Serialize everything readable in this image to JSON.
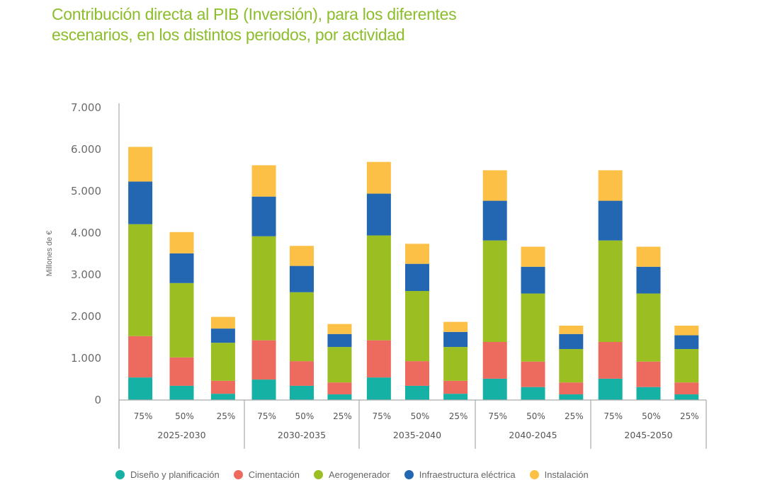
{
  "title": {
    "line1": "Contribución directa al PIB (Inversión), para los diferentes",
    "line2": "escenarios, en los distintos periodos, por actividad"
  },
  "chart_data": {
    "type": "bar",
    "stacked": true,
    "title": "Contribución directa al PIB (Inversión), para los diferentes escenarios, en los distintos periodos, por actividad",
    "xlabel": "",
    "ylabel": "Millones de €",
    "ylim": [
      0,
      7000
    ],
    "yticks": [
      0,
      1000,
      2000,
      3000,
      4000,
      5000,
      6000,
      7000
    ],
    "ytick_labels": [
      "0",
      "1.000",
      "2.000",
      "3.000",
      "4.000",
      "5.000",
      "6.000",
      "7.000"
    ],
    "grid": false,
    "legend_position": "bottom",
    "groups": [
      "2025-2030",
      "2030-2035",
      "2035-2040",
      "2040-2045",
      "2045-2050"
    ],
    "scenarios": [
      "75%",
      "50%",
      "25%"
    ],
    "categories": [
      "2025-2030 75%",
      "2025-2030 50%",
      "2025-2030 25%",
      "2030-2035 75%",
      "2030-2035 50%",
      "2030-2035 25%",
      "2035-2040 75%",
      "2035-2040 50%",
      "2035-2040 25%",
      "2040-2045 75%",
      "2040-2045 50%",
      "2040-2045 25%",
      "2045-2050 75%",
      "2045-2050 50%",
      "2045-2050 25%"
    ],
    "series": [
      {
        "name": "Diseño y planificación",
        "color": "#14b1a4",
        "values": [
          540,
          340,
          150,
          490,
          340,
          135,
          540,
          340,
          150,
          510,
          310,
          135,
          510,
          310,
          135
        ]
      },
      {
        "name": "Cimentación",
        "color": "#ec6b5e",
        "values": [
          990,
          680,
          310,
          940,
          590,
          285,
          890,
          590,
          310,
          880,
          610,
          285,
          880,
          610,
          285
        ]
      },
      {
        "name": "Aerogenerador",
        "color": "#9bbf23",
        "values": [
          2680,
          1780,
          910,
          2490,
          1650,
          850,
          2510,
          1680,
          810,
          2430,
          1630,
          800,
          2430,
          1630,
          800
        ]
      },
      {
        "name": "Infraestructura eléctrica",
        "color": "#2366b1",
        "values": [
          1020,
          710,
          340,
          950,
          630,
          310,
          1000,
          650,
          360,
          950,
          640,
          360,
          950,
          640,
          330
        ]
      },
      {
        "name": "Instalación",
        "color": "#fbc045",
        "values": [
          830,
          510,
          280,
          750,
          480,
          240,
          760,
          480,
          240,
          730,
          480,
          200,
          730,
          480,
          230
        ]
      }
    ]
  }
}
